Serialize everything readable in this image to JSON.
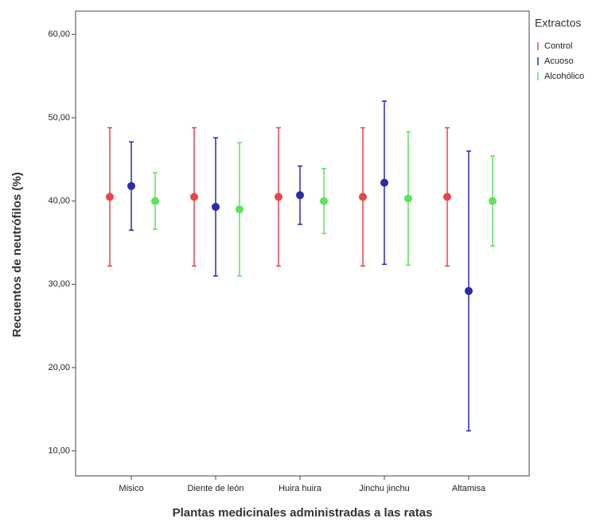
{
  "chart_data": {
    "type": "errorbar",
    "xlabel": "Plantas medicinales administradas a las ratas",
    "ylabel": "Recuentos de neutrófilos (%)",
    "legend_title": "Extractos",
    "categories": [
      "Misico",
      "Diente de león",
      "Huira huira",
      "Jinchu jinchu",
      "Altamisa"
    ],
    "series": [
      {
        "name": "Control",
        "color": "#e8454a",
        "values": [
          40.5,
          40.5,
          40.5,
          40.5,
          40.5
        ],
        "errors": [
          8.3,
          8.3,
          8.3,
          8.3,
          8.3
        ]
      },
      {
        "name": "Acuoso",
        "color": "#2b2ba8",
        "values": [
          41.8,
          39.3,
          40.7,
          42.2,
          29.2
        ],
        "errors": [
          5.3,
          8.3,
          3.5,
          9.8,
          16.8
        ]
      },
      {
        "name": "Alcohólico",
        "color": "#5ce35c",
        "values": [
          40.0,
          39.0,
          40.0,
          40.3,
          40.0
        ],
        "errors": [
          3.4,
          8.0,
          3.9,
          8.0,
          5.4
        ]
      }
    ],
    "ylim": [
      7,
      62.8
    ],
    "yticks": [
      {
        "value": 10,
        "label": "10,00"
      },
      {
        "value": 20,
        "label": "20,00"
      },
      {
        "value": 30,
        "label": "30,00"
      },
      {
        "value": 40,
        "label": "40,00"
      },
      {
        "value": 50,
        "label": "50,00"
      },
      {
        "value": 60,
        "label": "60,00"
      }
    ],
    "legend_position": "right"
  }
}
